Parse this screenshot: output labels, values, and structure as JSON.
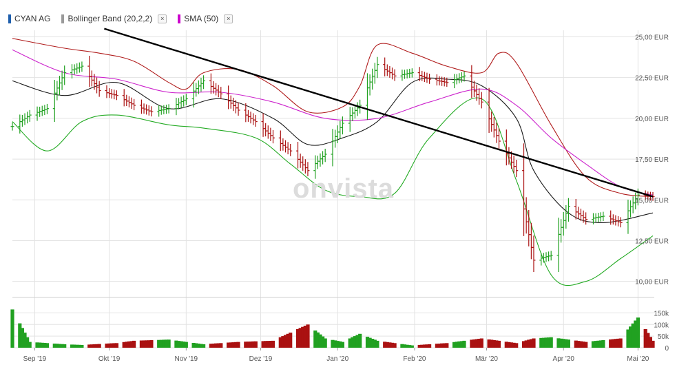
{
  "legend": [
    {
      "label": "CYAN AG",
      "color": "#1f5fad",
      "closable": false
    },
    {
      "label": "Bollinger Band (20,2,2)",
      "color": "#9a9a9a",
      "closable": true
    },
    {
      "label": "SMA (50)",
      "color": "#cc00cc",
      "closable": true
    }
  ],
  "close_glyph": "×",
  "watermark": "onvista",
  "colors": {
    "up": "#21a121",
    "down": "#aa1111",
    "bb_upper": "#b01c1c",
    "bb_mid": "#1a1a1a",
    "bb_lower": "#22aa22",
    "sma": "#cc22cc",
    "trendline": "#000000",
    "grid": "#e3e3e3"
  },
  "chart_data": {
    "type": "ohlc",
    "x_axis": {
      "start": "2019-08-23",
      "end": "2020-05-07",
      "tick_labels": [
        {
          "date": "2019-09-01",
          "label": "Sep '19"
        },
        {
          "date": "2019-10-01",
          "label": "Okt '19"
        },
        {
          "date": "2019-11-01",
          "label": "Nov '19"
        },
        {
          "date": "2019-12-01",
          "label": "Dez '19"
        },
        {
          "date": "2020-01-01",
          "label": "Jan '20"
        },
        {
          "date": "2020-02-01",
          "label": "Feb '20"
        },
        {
          "date": "2020-03-01",
          "label": "Mär '20"
        },
        {
          "date": "2020-04-01",
          "label": "Apr '20"
        },
        {
          "date": "2020-05-01",
          "label": "Mai '20"
        }
      ]
    },
    "price_axis": {
      "range": [
        9.1,
        25.4
      ],
      "unit": "EUR",
      "ticks": [
        {
          "value": 10.0,
          "label": "10,00 EUR"
        },
        {
          "value": 12.5,
          "label": "12,50 EUR"
        },
        {
          "value": 15.0,
          "label": "15,00 EUR"
        },
        {
          "value": 17.5,
          "label": "17,50 EUR"
        },
        {
          "value": 20.0,
          "label": "20,00 EUR"
        },
        {
          "value": 22.5,
          "label": "22,50 EUR"
        },
        {
          "value": 25.0,
          "label": "25,00 EUR"
        }
      ]
    },
    "volume_axis": {
      "range": [
        0,
        175000
      ],
      "ticks": [
        {
          "value": 0,
          "label": "0"
        },
        {
          "value": 50000,
          "label": "50k"
        },
        {
          "value": 100000,
          "label": "100k"
        },
        {
          "value": 150000,
          "label": "150k"
        }
      ]
    },
    "series": [
      {
        "name": "CYAN AG",
        "type": "ohlc",
        "anchors": [
          [
            "2019-08-23",
            19.5
          ],
          [
            "2019-08-30",
            20.2
          ],
          [
            "2019-09-06",
            20.6
          ],
          [
            "2019-09-13",
            22.8
          ],
          [
            "2019-09-20",
            23.2
          ],
          [
            "2019-09-27",
            21.7
          ],
          [
            "2019-10-04",
            21.4
          ],
          [
            "2019-10-11",
            20.8
          ],
          [
            "2019-10-18",
            20.4
          ],
          [
            "2019-10-25",
            20.6
          ],
          [
            "2019-11-01",
            21.2
          ],
          [
            "2019-11-08",
            22.3
          ],
          [
            "2019-11-15",
            21.5
          ],
          [
            "2019-11-22",
            20.5
          ],
          [
            "2019-11-29",
            19.8
          ],
          [
            "2019-12-06",
            18.8
          ],
          [
            "2019-12-13",
            18.0
          ],
          [
            "2019-12-20",
            16.8
          ],
          [
            "2019-12-27",
            17.8
          ],
          [
            "2020-01-03",
            19.7
          ],
          [
            "2020-01-10",
            20.8
          ],
          [
            "2020-01-17",
            23.3
          ],
          [
            "2020-01-24",
            22.6
          ],
          [
            "2020-01-31",
            22.8
          ],
          [
            "2020-02-07",
            22.4
          ],
          [
            "2020-02-14",
            22.2
          ],
          [
            "2020-02-21",
            22.6
          ],
          [
            "2020-02-28",
            21.0
          ],
          [
            "2020-03-06",
            18.6
          ],
          [
            "2020-03-13",
            16.8
          ],
          [
            "2020-03-20",
            11.3
          ],
          [
            "2020-03-27",
            11.6
          ],
          [
            "2020-04-03",
            14.6
          ],
          [
            "2020-04-10",
            13.8
          ],
          [
            "2020-04-17",
            14.0
          ],
          [
            "2020-04-24",
            13.6
          ],
          [
            "2020-05-01",
            15.3
          ],
          [
            "2020-05-07",
            15.2
          ]
        ]
      },
      {
        "name": "Bollinger Band (20,2,2)",
        "type": "line",
        "line": "upper",
        "points": [
          [
            "2019-08-23",
            24.9
          ],
          [
            "2019-09-13",
            24.3
          ],
          [
            "2019-09-27",
            24.0
          ],
          [
            "2019-10-11",
            23.5
          ],
          [
            "2019-10-25",
            22.2
          ],
          [
            "2019-11-01",
            21.8
          ],
          [
            "2019-11-08",
            22.8
          ],
          [
            "2019-11-22",
            23.0
          ],
          [
            "2019-12-06",
            22.0
          ],
          [
            "2019-12-20",
            20.4
          ],
          [
            "2020-01-03",
            20.7
          ],
          [
            "2020-01-10",
            22.0
          ],
          [
            "2020-01-17",
            24.5
          ],
          [
            "2020-01-31",
            24.0
          ],
          [
            "2020-02-14",
            23.2
          ],
          [
            "2020-02-28",
            22.8
          ],
          [
            "2020-03-06",
            24.0
          ],
          [
            "2020-03-13",
            23.4
          ],
          [
            "2020-03-27",
            19.6
          ],
          [
            "2020-04-10",
            16.4
          ],
          [
            "2020-04-24",
            15.4
          ],
          [
            "2020-05-07",
            15.2
          ]
        ]
      },
      {
        "name": "Bollinger Band (20,2,2)",
        "type": "line",
        "line": "middle",
        "points": [
          [
            "2019-08-23",
            22.3
          ],
          [
            "2019-09-13",
            21.4
          ],
          [
            "2019-10-04",
            22.2
          ],
          [
            "2019-10-25",
            20.6
          ],
          [
            "2019-11-15",
            21.2
          ],
          [
            "2019-12-06",
            20.0
          ],
          [
            "2019-12-20",
            18.4
          ],
          [
            "2020-01-03",
            18.8
          ],
          [
            "2020-01-17",
            19.8
          ],
          [
            "2020-01-31",
            22.2
          ],
          [
            "2020-02-14",
            22.4
          ],
          [
            "2020-02-28",
            22.0
          ],
          [
            "2020-03-13",
            20.0
          ],
          [
            "2020-03-20",
            16.8
          ],
          [
            "2020-04-03",
            14.2
          ],
          [
            "2020-04-17",
            13.6
          ],
          [
            "2020-05-07",
            14.2
          ]
        ]
      },
      {
        "name": "Bollinger Band (20,2,2)",
        "type": "line",
        "line": "lower",
        "points": [
          [
            "2019-08-23",
            19.8
          ],
          [
            "2019-09-06",
            18.0
          ],
          [
            "2019-09-20",
            19.8
          ],
          [
            "2019-10-04",
            20.2
          ],
          [
            "2019-10-25",
            19.6
          ],
          [
            "2019-11-08",
            19.4
          ],
          [
            "2019-11-29",
            18.8
          ],
          [
            "2019-12-13",
            17.2
          ],
          [
            "2019-12-27",
            15.6
          ],
          [
            "2020-01-10",
            15.2
          ],
          [
            "2020-01-24",
            15.4
          ],
          [
            "2020-02-07",
            18.8
          ],
          [
            "2020-02-28",
            21.2
          ],
          [
            "2020-03-13",
            16.2
          ],
          [
            "2020-03-27",
            10.4
          ],
          [
            "2020-04-10",
            10.0
          ],
          [
            "2020-04-24",
            11.4
          ],
          [
            "2020-05-07",
            12.8
          ]
        ]
      },
      {
        "name": "SMA (50)",
        "type": "line",
        "points": [
          [
            "2019-08-23",
            24.2
          ],
          [
            "2019-09-13",
            22.8
          ],
          [
            "2019-10-04",
            22.4
          ],
          [
            "2019-10-25",
            21.6
          ],
          [
            "2019-11-15",
            21.6
          ],
          [
            "2019-12-06",
            21.0
          ],
          [
            "2019-12-27",
            20.0
          ],
          [
            "2020-01-17",
            20.0
          ],
          [
            "2020-02-07",
            21.0
          ],
          [
            "2020-02-28",
            21.8
          ],
          [
            "2020-03-13",
            20.8
          ],
          [
            "2020-03-27",
            18.8
          ],
          [
            "2020-04-10",
            17.2
          ],
          [
            "2020-04-24",
            15.8
          ],
          [
            "2020-05-07",
            15.3
          ]
        ]
      },
      {
        "name": "Trendline",
        "type": "line",
        "points": [
          [
            "2019-09-29",
            25.5
          ],
          [
            "2020-05-07",
            15.2
          ]
        ]
      },
      {
        "name": "Volume",
        "type": "bar",
        "anchors": [
          [
            "2019-08-23",
            165000
          ],
          [
            "2019-08-30",
            25000
          ],
          [
            "2019-09-06",
            20000
          ],
          [
            "2019-09-13",
            15000
          ],
          [
            "2019-09-20",
            12000
          ],
          [
            "2019-10-04",
            20000
          ],
          [
            "2019-10-11",
            30000
          ],
          [
            "2019-10-25",
            35000
          ],
          [
            "2019-11-08",
            15000
          ],
          [
            "2019-11-22",
            25000
          ],
          [
            "2019-12-06",
            30000
          ],
          [
            "2019-12-20",
            100000
          ],
          [
            "2019-12-27",
            40000
          ],
          [
            "2020-01-03",
            25000
          ],
          [
            "2020-01-10",
            60000
          ],
          [
            "2020-01-17",
            30000
          ],
          [
            "2020-01-31",
            10000
          ],
          [
            "2020-02-14",
            20000
          ],
          [
            "2020-02-28",
            40000
          ],
          [
            "2020-03-13",
            20000
          ],
          [
            "2020-03-20",
            40000
          ],
          [
            "2020-03-27",
            45000
          ],
          [
            "2020-04-10",
            25000
          ],
          [
            "2020-04-24",
            40000
          ],
          [
            "2020-05-01",
            130000
          ],
          [
            "2020-05-07",
            30000
          ]
        ]
      }
    ]
  }
}
